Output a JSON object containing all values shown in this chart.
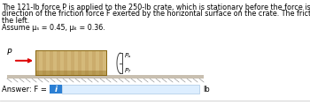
{
  "text_lines": [
    "The 121-lb force P is applied to the 250-lb crate, which is stationary before the force is applied. Determine the magnitude and",
    "direction of the friction force F exerted by the horizontal surface on the crate. The friction force is positive if to the right, negative if to",
    "the left.",
    "Assume μₛ = 0.45, μₖ = 0.36."
  ],
  "answer_label": "Answer: F = ",
  "answer_unit": "lb",
  "answer_box_color": "#2b7fd4",
  "answer_icon": "i",
  "bg_color": "#ffffff",
  "crate_color": "#d4b97a",
  "crate_stripe_color": "#c4a060",
  "crate_dark_color": "#8b6914",
  "ground_top_color": "#c8bfb0",
  "ground_fill_color": "#b8b0a0",
  "arrow_color": "#dd0000",
  "text_color": "#000000",
  "text_fontsize": 5.8,
  "label_fontsize": 6.0
}
